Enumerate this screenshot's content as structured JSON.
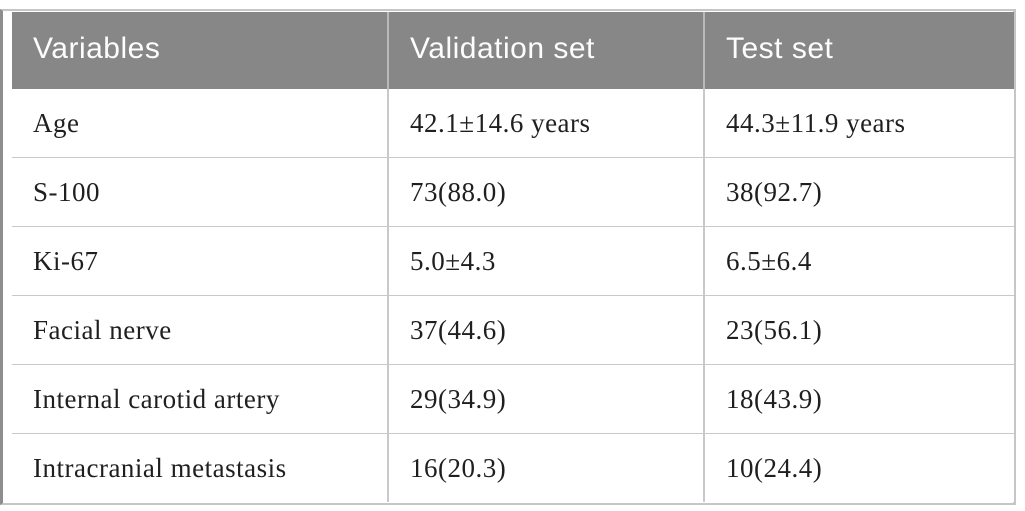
{
  "table": {
    "columns": [
      {
        "label": "Variables"
      },
      {
        "label": "Validation set"
      },
      {
        "label": "Test set"
      }
    ],
    "rows": [
      {
        "variable": "Age",
        "validation": "42.1±14.6 years",
        "test": "44.3±11.9 years"
      },
      {
        "variable": "S-100",
        "validation": "73(88.0)",
        "test": "38(92.7)"
      },
      {
        "variable": "Ki-67",
        "validation": "5.0±4.3",
        "test": "6.5±6.4"
      },
      {
        "variable": "Facial nerve",
        "validation": "37(44.6)",
        "test": "23(56.1)"
      },
      {
        "variable": "Internal carotid artery",
        "validation": "29(34.9)",
        "test": "18(43.9)"
      },
      {
        "variable": "Intracranial metastasis",
        "validation": "16(20.3)",
        "test": "10(24.4)"
      }
    ]
  },
  "colors": {
    "header_bg": "#878787",
    "header_text": "#fdfdfd",
    "body_text": "#1f1f1f",
    "grid_line": "#c9c9c9",
    "header_divider": "#b9b9b9",
    "outer_border": "#c6c6c6",
    "left_border": "#8d8d8d"
  }
}
